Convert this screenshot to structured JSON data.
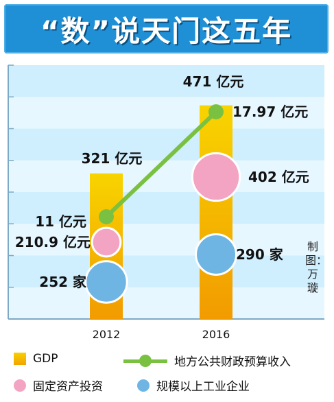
{
  "title": "“数”说天门这五年",
  "author": "制图：万璇",
  "chart_data": {
    "type": "bar",
    "categories": [
      "2012",
      "2016"
    ],
    "series": [
      {
        "name": "GDP",
        "values": [
          321,
          471
        ],
        "labels": [
          "321 亿元",
          "471 亿元"
        ],
        "color": "#f5b800",
        "kind": "bar"
      },
      {
        "name": "地方公共财政预算收入",
        "values": [
          11,
          17.97
        ],
        "labels": [
          "11 亿元",
          "17.97 亿元"
        ],
        "color": "#7ac142",
        "kind": "line"
      },
      {
        "name": "固定资产投资",
        "values": [
          210.9,
          402
        ],
        "labels": [
          "210.9 亿元",
          "402 亿元"
        ],
        "color": "#f3a4c2",
        "kind": "bubble"
      },
      {
        "name": "规模以上工业企业",
        "values": [
          252,
          290
        ],
        "labels": [
          "252 家",
          "290 家"
        ],
        "color": "#6fb5e3",
        "kind": "bubble"
      }
    ],
    "grid": true,
    "legend": "bottom"
  },
  "colors": {
    "title_bg": "#1f8fd6",
    "plot_bg": "#cfeefe",
    "stripe": "#e7f7ff"
  }
}
